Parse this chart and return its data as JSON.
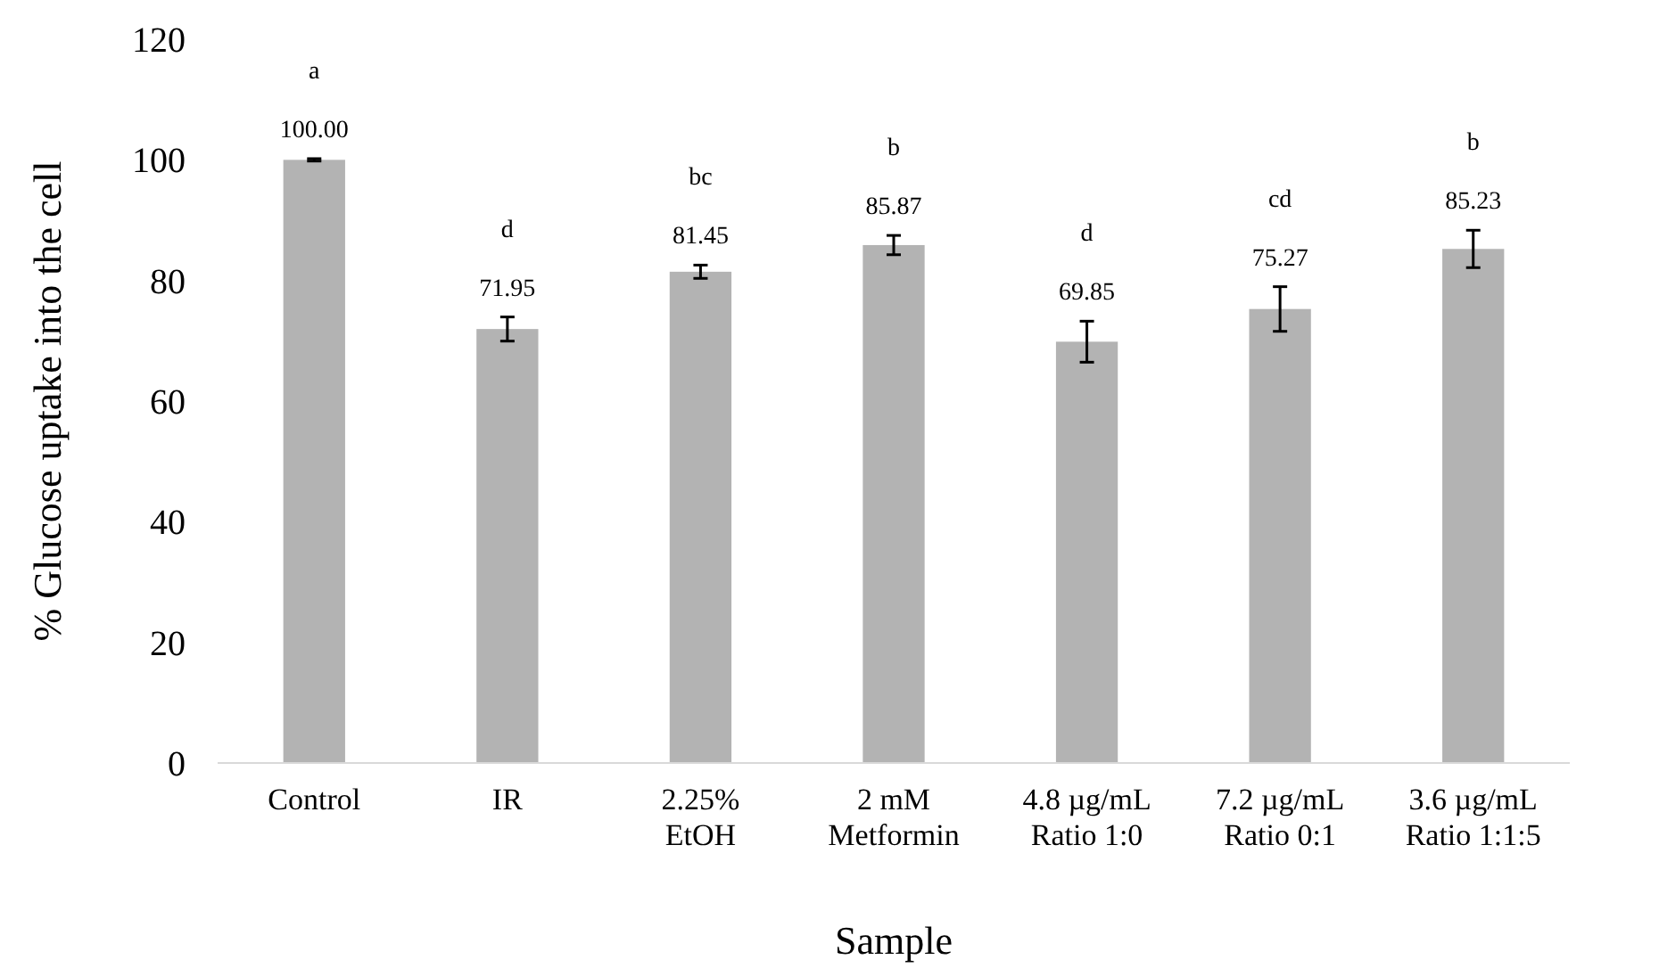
{
  "chart_data": {
    "type": "bar",
    "xlabel": "Sample",
    "ylabel": "% Glucose uptake into the cell",
    "categories": [
      "Control",
      "IR",
      "2.25%\nEtOH",
      "2 mM\nMetformin",
      "4.8 µg/mL\nRatio 1:0",
      "7.2 µg/mL\nRatio 0:1",
      "3.6 µg/mL\nRatio 1:1:5"
    ],
    "values": [
      100.0,
      71.95,
      81.45,
      85.87,
      69.85,
      75.27,
      85.23
    ],
    "errors": [
      0.2,
      2.0,
      1.1,
      1.6,
      3.4,
      3.7,
      3.1
    ],
    "color": "#b3b3b3",
    "value_labels": [
      "100.00",
      "71.95",
      "81.45",
      "85.87",
      "69.85",
      "75.27",
      "85.23"
    ],
    "ylim": [
      0,
      120
    ],
    "yticks": [
      0,
      20,
      40,
      60,
      80,
      100,
      120
    ],
    "grid": false,
    "annotations": [
      "a",
      "d",
      "bc",
      "b",
      "d",
      "cd",
      "b"
    ]
  }
}
